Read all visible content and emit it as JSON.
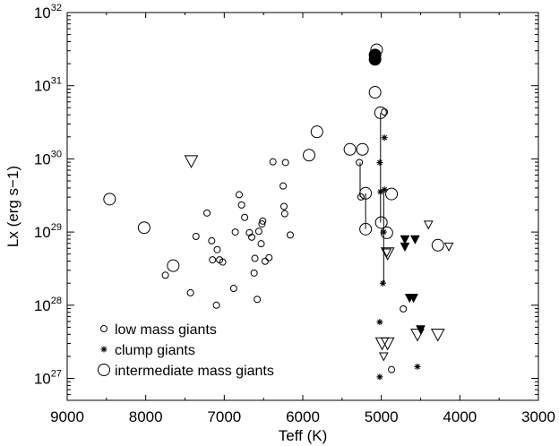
{
  "chart_data": {
    "type": "scatter",
    "title": "",
    "xlabel": "Teff (K)",
    "ylabel": "Lx (erg s−1)",
    "xlim": [
      9000,
      3000
    ],
    "x_reversed": true,
    "x_ticks": [
      "9000",
      "8000",
      "7000",
      "6000",
      "5000",
      "4000",
      "3000"
    ],
    "ylim_log10": [
      26.7,
      32
    ],
    "y_scale": "log",
    "y_ticks": [
      {
        "base": "10",
        "exp": "27",
        "log10": 27
      },
      {
        "base": "10",
        "exp": "28",
        "log10": 28
      },
      {
        "base": "10",
        "exp": "29",
        "log10": 29
      },
      {
        "base": "10",
        "exp": "30",
        "log10": 30
      },
      {
        "base": "10",
        "exp": "31",
        "log10": 31
      },
      {
        "base": "10",
        "exp": "32",
        "log10": 32
      }
    ],
    "legend": {
      "position": "bottom-left",
      "entries": [
        {
          "label": "low mass giants",
          "marker": "small-open-circle"
        },
        {
          "label": "clump giants",
          "marker": "asterisk"
        },
        {
          "label": "intermediate mass giants",
          "marker": "large-open-circle"
        }
      ]
    },
    "series": [
      {
        "name": "low mass giants",
        "marker": "small-open-circle",
        "points": [
          [
            7750,
            28.41
          ],
          [
            7430,
            28.17
          ],
          [
            7100,
            28.0
          ],
          [
            7360,
            28.94
          ],
          [
            7220,
            29.26
          ],
          [
            7160,
            28.88
          ],
          [
            7150,
            28.62
          ],
          [
            7060,
            28.62
          ],
          [
            7020,
            28.59
          ],
          [
            7090,
            28.76
          ],
          [
            6880,
            28.23
          ],
          [
            6860,
            29.0
          ],
          [
            6810,
            29.51
          ],
          [
            6780,
            29.37
          ],
          [
            6740,
            29.2
          ],
          [
            6680,
            28.99
          ],
          [
            6650,
            28.93
          ],
          [
            6620,
            28.44
          ],
          [
            6610,
            28.64
          ],
          [
            6580,
            28.08
          ],
          [
            6560,
            29.01
          ],
          [
            6530,
            28.84
          ],
          [
            6520,
            29.11
          ],
          [
            6510,
            29.15
          ],
          [
            6480,
            28.6
          ],
          [
            6430,
            28.65
          ],
          [
            6380,
            29.96
          ],
          [
            6250,
            29.63
          ],
          [
            6240,
            29.35
          ],
          [
            6230,
            29.25
          ],
          [
            6220,
            29.95
          ],
          [
            6160,
            28.96
          ],
          [
            5280,
            29.95
          ],
          [
            5260,
            29.48
          ],
          [
            4960,
            30.64
          ],
          [
            4720,
            27.95
          ],
          [
            4870,
            27.12
          ]
        ]
      },
      {
        "name": "clump giants",
        "marker": "asterisk",
        "points": [
          [
            5020,
            29.95
          ],
          [
            5010,
            29.55
          ],
          [
            4980,
            28.3
          ],
          [
            4960,
            30.29
          ],
          [
            4960,
            29.58
          ],
          [
            4970,
            29.0
          ],
          [
            5020,
            27.77
          ],
          [
            5020,
            27.02
          ],
          [
            4540,
            27.16
          ]
        ]
      },
      {
        "name": "intermediate mass giants",
        "marker": "large-open-circle",
        "points": [
          [
            8460,
            29.45
          ],
          [
            8020,
            29.06
          ],
          [
            7650,
            28.54
          ],
          [
            5820,
            30.37
          ],
          [
            5920,
            30.05
          ],
          [
            5400,
            30.13
          ],
          [
            5240,
            30.13
          ],
          [
            5200,
            29.53
          ],
          [
            5200,
            29.04
          ],
          [
            5060,
            31.49
          ],
          [
            5080,
            30.91
          ],
          [
            5010,
            30.63
          ],
          [
            5000,
            29.13
          ],
          [
            4930,
            28.99
          ],
          [
            4870,
            29.52
          ],
          [
            4280,
            28.82
          ]
        ]
      },
      {
        "name": "",
        "marker": "filled-circle",
        "points": [
          [
            5080,
            31.42
          ],
          [
            5080,
            31.36
          ]
        ]
      },
      {
        "name": "",
        "marker": "large-open-triangle-down",
        "points": [
          [
            7420,
            29.97
          ],
          [
            4920,
            28.71
          ],
          [
            4990,
            27.48
          ],
          [
            4920,
            27.48
          ],
          [
            4540,
            27.6
          ],
          [
            4280,
            27.6
          ]
        ]
      },
      {
        "name": "",
        "marker": "small-open-triangle-down",
        "points": [
          [
            4400,
            29.1
          ],
          [
            4140,
            28.8
          ],
          [
            4930,
            28.72
          ],
          [
            4970,
            27.3
          ]
        ]
      },
      {
        "name": "",
        "marker": "filled-triangle-down",
        "points": [
          [
            4700,
            28.9
          ],
          [
            4700,
            28.8
          ],
          [
            4570,
            28.9
          ],
          [
            4640,
            28.1
          ],
          [
            4590,
            28.1
          ],
          [
            4500,
            27.67
          ]
        ]
      }
    ],
    "connectors": [
      [
        [
          5270,
          29.95
        ],
        [
          5270,
          29.48
        ]
      ],
      [
        [
          5200,
          29.53
        ],
        [
          5200,
          29.04
        ]
      ],
      [
        [
          5010,
          30.63
        ],
        [
          5010,
          29.13
        ]
      ],
      [
        [
          4970,
          29.55
        ],
        [
          4970,
          28.3
        ]
      ]
    ],
    "grid": false
  }
}
